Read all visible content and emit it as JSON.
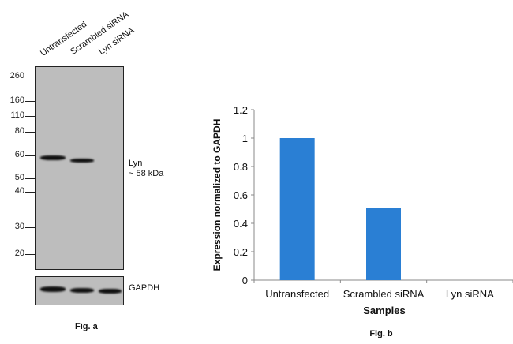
{
  "fig_a": {
    "caption": "Fig. a",
    "lanes": [
      "Untransfected",
      "Scrambled siRNA",
      "Lyn siRNA"
    ],
    "markers": [
      "260",
      "160",
      "110",
      "80",
      "60",
      "50",
      "40",
      "30",
      "20"
    ],
    "band_label": "Lyn",
    "band_size": "~ 58 kDa",
    "loading_label": "GAPDH"
  },
  "chart_data": {
    "type": "bar",
    "title": "",
    "caption": "Fig. b",
    "categories": [
      "Untransfected",
      "Scrambled siRNA",
      "Lyn siRNA"
    ],
    "values": [
      1.0,
      0.51,
      0.0
    ],
    "xlabel": "Samples",
    "ylabel": "Expression normalized to GAPDH",
    "ylim": [
      0,
      1.2
    ],
    "yticks": [
      "0",
      "0.2",
      "0.4",
      "0.6",
      "0.8",
      "1",
      "1.2"
    ],
    "grid": false,
    "bar_color": "#2a7fd4"
  }
}
